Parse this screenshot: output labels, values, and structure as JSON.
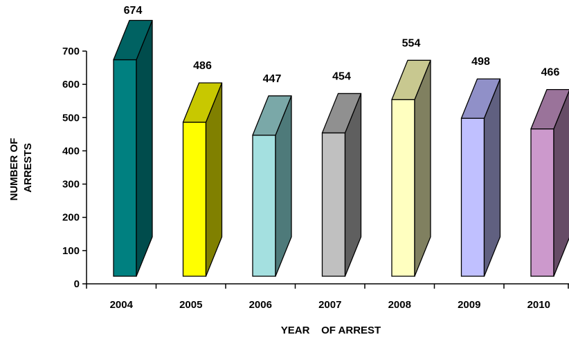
{
  "chart_data": {
    "type": "bar",
    "style": "3d",
    "categories": [
      "2004",
      "2005",
      "2006",
      "2007",
      "2008",
      "2009",
      "2010"
    ],
    "values": [
      674,
      486,
      447,
      454,
      554,
      498,
      466
    ],
    "xlabel": "YEAR    OF ARREST",
    "ylabel_lines": [
      "NUMBER OF",
      "ARRESTS"
    ],
    "ylim": [
      0,
      700
    ],
    "yticks": [
      "0",
      "100",
      "200",
      "300",
      "400",
      "500",
      "600",
      "700"
    ],
    "grid": false,
    "legend": "none",
    "bar_colors": [
      {
        "front": "#008080",
        "side": "#004c4c",
        "top": "#006262"
      },
      {
        "front": "#ffff00",
        "side": "#808000",
        "top": "#c8c800"
      },
      {
        "front": "#a4e0e0",
        "side": "#4e7a7a",
        "top": "#7aa8a8"
      },
      {
        "front": "#c0c0c0",
        "side": "#5f5f5f",
        "top": "#909090"
      },
      {
        "front": "#ffffc0",
        "side": "#808060",
        "top": "#c8c890"
      },
      {
        "front": "#c0c0ff",
        "side": "#606080",
        "top": "#9090c8"
      },
      {
        "front": "#cc99cc",
        "side": "#664c66",
        "top": "#9a739a"
      }
    ]
  }
}
